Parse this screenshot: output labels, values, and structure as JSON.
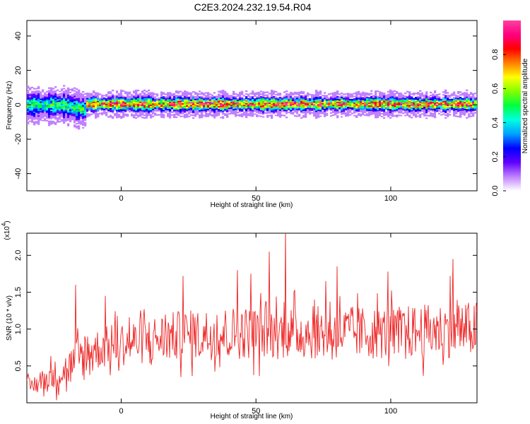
{
  "title": "C2E3.2024.232.19.54.R04",
  "chart_data": [
    {
      "type": "heatmap",
      "xlabel": "Height of straight line (km)",
      "ylabel": "Frequency (Hz)",
      "xlim": [
        -35,
        132
      ],
      "ylim": [
        -50,
        49
      ],
      "xticks": [
        0,
        50,
        100
      ],
      "yticks": [
        40,
        20,
        0,
        -20,
        -40
      ],
      "colorbar": {
        "label": "Normalized spectral amplitude",
        "range": [
          0,
          1
        ],
        "ticks": [
          "0.0",
          "0.2",
          "0.4",
          "0.6",
          "0.8"
        ],
        "colors": [
          "#ffffff",
          "#c080ff",
          "#6000ff",
          "#0000ff",
          "#00a0ff",
          "#00ffe0",
          "#00ff40",
          "#80ff00",
          "#ffff00",
          "#ff8000",
          "#ff0000",
          "#ff0080",
          "#ff40a0"
        ]
      },
      "band_profile": [
        {
          "x_start": -35,
          "x_end": -13,
          "center_hz": 0,
          "half_width_hz": 7,
          "peak": 0.55
        },
        {
          "x_start": -13,
          "x_end": 132,
          "center_hz": 0.5,
          "half_width_hz": 4,
          "peak": 0.95
        }
      ]
    },
    {
      "type": "line",
      "xlabel": "Height of straight line (km)",
      "ylabel": "SNR (10 * v/v)",
      "yscale_label": "(x10",
      "yscale_exp": "4",
      "color": "#ee2222",
      "xlim": [
        -35,
        132
      ],
      "ylim": [
        0,
        2.3
      ],
      "xticks": [
        0,
        50,
        100
      ],
      "yticks": [
        "0.5",
        "1.0",
        "1.5",
        "2.0"
      ],
      "trend": [
        {
          "x": -35,
          "y": 0.2
        },
        {
          "x": -20,
          "y": 0.45
        },
        {
          "x": -12,
          "y": 0.7
        },
        {
          "x": 0,
          "y": 0.8
        },
        {
          "x": 20,
          "y": 0.9
        },
        {
          "x": 40,
          "y": 0.95
        },
        {
          "x": 60,
          "y": 0.95
        },
        {
          "x": 80,
          "y": 0.95
        },
        {
          "x": 100,
          "y": 0.95
        },
        {
          "x": 132,
          "y": 1.0
        }
      ],
      "spikes": [
        {
          "x": -17,
          "y": 1.6
        },
        {
          "x": -6,
          "y": 1.45
        },
        {
          "x": 23,
          "y": 1.72
        },
        {
          "x": 43,
          "y": 1.8
        },
        {
          "x": 48,
          "y": 1.75
        },
        {
          "x": 55,
          "y": 2.05
        },
        {
          "x": 61,
          "y": 2.35
        },
        {
          "x": 76,
          "y": 1.65
        },
        {
          "x": 80,
          "y": 1.85
        },
        {
          "x": 99,
          "y": 1.78
        },
        {
          "x": 122,
          "y": 1.72
        },
        {
          "x": 123,
          "y": 1.95
        }
      ]
    }
  ]
}
